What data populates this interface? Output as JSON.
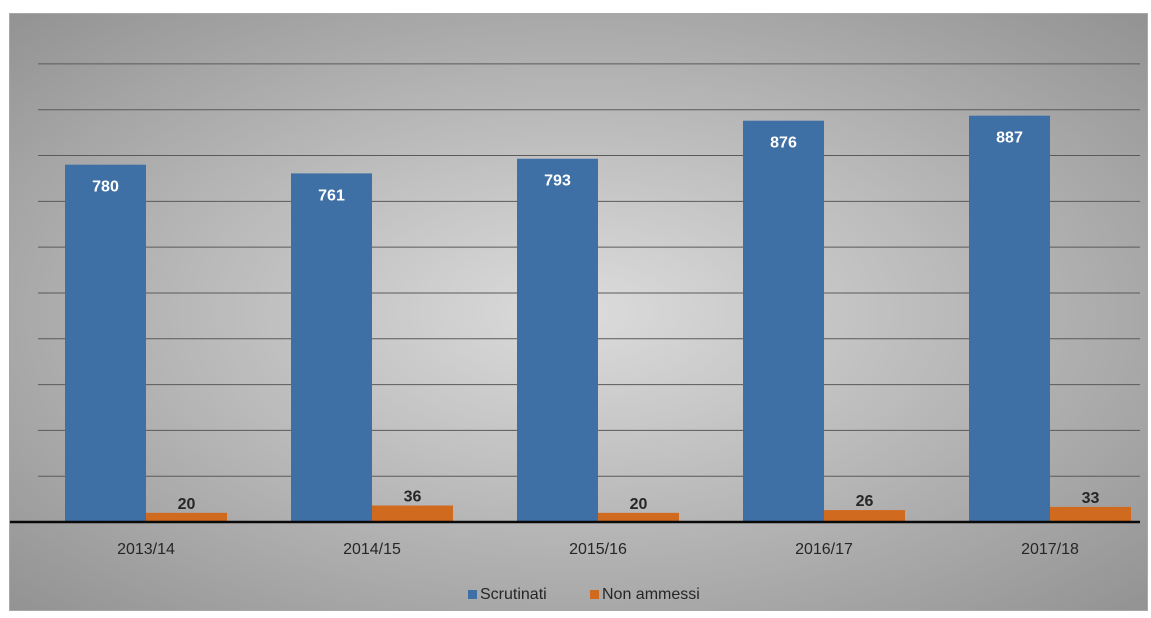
{
  "chart_data": {
    "type": "bar",
    "categories": [
      "2013/14",
      "2014/15",
      "2015/16",
      "2016/17",
      "2017/18"
    ],
    "series": [
      {
        "name": "Scrutinati",
        "values": [
          780,
          761,
          793,
          876,
          887
        ],
        "color": "#3e70a6"
      },
      {
        "name": "Non ammessi",
        "values": [
          20,
          36,
          20,
          26,
          33
        ],
        "color": "#d06a1f"
      }
    ],
    "title": "",
    "xlabel": "",
    "ylabel": "",
    "ylim": [
      0,
      1050
    ],
    "grid": true,
    "legend": "bottom",
    "data_labels": true
  },
  "colors": {
    "background_light": "#dcdcdc",
    "background_dark": "#8e8e8e",
    "gridline": "#5a5a5a",
    "axis": "#0a0a0a"
  }
}
